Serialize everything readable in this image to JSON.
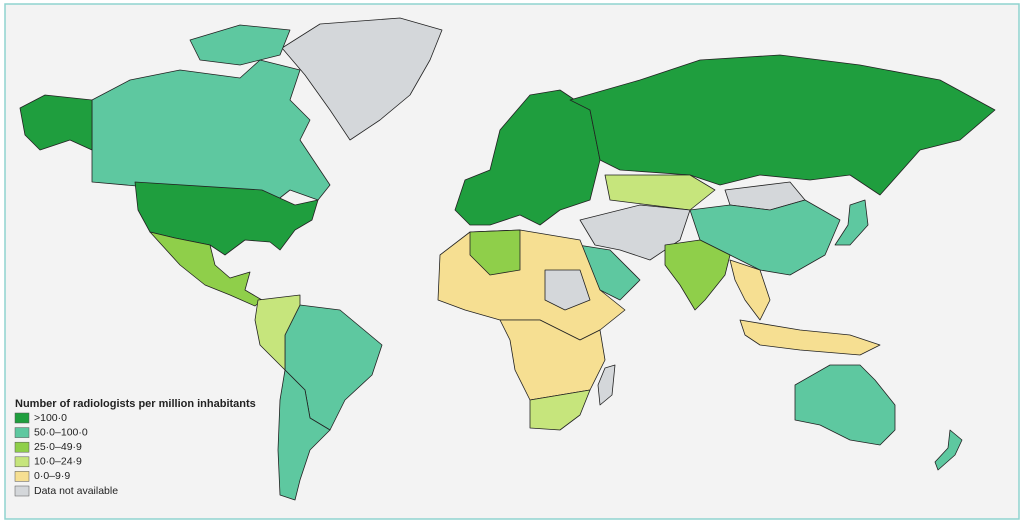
{
  "legend": {
    "title": "Number of radiologists per million inhabitants",
    "items": [
      {
        "label": ">100·0",
        "color": "#1f9e3e"
      },
      {
        "label": "50·0–100·0",
        "color": "#5ec8a0"
      },
      {
        "label": "25·0–49·9",
        "color": "#8fcf4a"
      },
      {
        "label": "10·0–24·9",
        "color": "#c6e57c"
      },
      {
        "label": "0·0–9·9",
        "color": "#f6df92"
      },
      {
        "label": "Data not available",
        "color": "#d4d7da"
      }
    ]
  }
}
